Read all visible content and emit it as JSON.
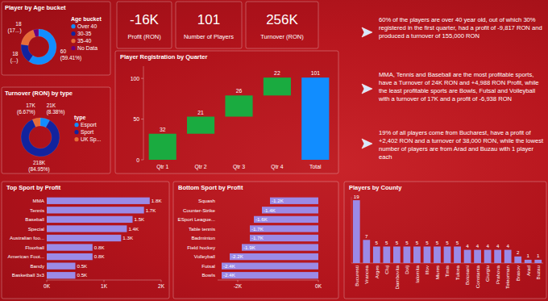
{
  "kpis": [
    {
      "value": "-16K",
      "label": "Profit (RON)"
    },
    {
      "value": "101",
      "label": "Number of Players"
    },
    {
      "value": "256K",
      "label": "Turnover (RON)"
    }
  ],
  "insights": [
    "60% of the players are over 40 year old, out of which 30% registered in the first quarter, had a profit of -9,817 RON and produced a turnover of 155,000 RON",
    "MMA, Tennis and Baseball are the most profitable sports, have a Turnover of 24K RON and +4,988 RON Profit, while the least profitable sports are Bowls, Futsal and Volleyball with a turnover of 17K and a profit of -6,938 RON",
    "19% of all players come from Bucharest, have a profit of +2,402 RON and a turnover of 38,000 RON, while the lowest number of players are from Arad and Buzau with 1 player each"
  ],
  "chart_data": [
    {
      "type": "donut",
      "title": "Player by Age bucket",
      "legend_title": "Age bucket",
      "categories": [
        "Over 40",
        "30-35",
        "35-40",
        "No Data"
      ],
      "values": [
        60,
        18,
        18,
        5
      ],
      "colors": [
        "#118dff",
        "#12239e",
        "#e66c37",
        "#6b007b"
      ],
      "data_labels": true,
      "value_labels": [
        "60 (59.41%)",
        "18 (...)",
        "18 (17...)",
        null
      ],
      "legend": "right"
    },
    {
      "type": "donut",
      "title": "Turnover (RON) by type",
      "legend_title": "type",
      "categories": [
        "Esport",
        "Sport",
        "UK Sp..."
      ],
      "values": [
        21,
        218,
        17
      ],
      "colors": [
        "#118dff",
        "#12239e",
        "#e66c37"
      ],
      "data_labels": true,
      "value_labels": [
        "21K (8.38%)",
        "218K (84.95%)",
        "17K (6.67%)"
      ],
      "legend": "right"
    },
    {
      "type": "waterfall",
      "title": "Player Registration by Quarter",
      "categories": [
        "Qtr 1",
        "Qtr 2",
        "Qtr 3",
        "Qtr 4",
        "Total"
      ],
      "values": [
        32,
        21,
        26,
        22,
        101
      ],
      "colors": [
        "#1aab40",
        "#1aab40",
        "#1aab40",
        "#1aab40",
        "#118dff"
      ],
      "ylim": [
        0,
        115
      ],
      "yticks": [
        0,
        50,
        100
      ],
      "grid": false,
      "data_labels": true
    },
    {
      "type": "bar",
      "orientation": "horizontal",
      "title": "Top Sport by Profit",
      "categories": [
        "MMA",
        "Tennis",
        "Baseball",
        "Special",
        "Australian foo...",
        "Floorball",
        "American Foot...",
        "Bandy",
        "Basketball 3x3"
      ],
      "values": [
        1.8,
        1.7,
        1.5,
        1.4,
        1.3,
        0.8,
        0.8,
        0.5,
        0.5
      ],
      "value_labels": [
        "1.8K",
        "1.7K",
        "1.5K",
        "1.4K",
        "1.3K",
        "0.8K",
        "0.8K",
        "0.5K",
        "0.5K"
      ],
      "color": "#9b8ae6",
      "xlim": [
        0,
        2
      ],
      "xticks": [
        {
          "value": 0,
          "label": "0K"
        },
        {
          "value": 1,
          "label": "1K"
        },
        {
          "value": 2,
          "label": "2K"
        }
      ],
      "data_labels": true
    },
    {
      "type": "bar",
      "orientation": "horizontal",
      "title": "Bottom Sport by Profit",
      "categories": [
        "Squash",
        "Counter-Strike",
        "ESport League...",
        "Table tennis",
        "Badminton",
        "Field hockey",
        "Volleyball",
        "Futsal",
        "Bowls"
      ],
      "values": [
        -1.2,
        -1.4,
        -1.6,
        -1.7,
        -1.7,
        -1.9,
        -2.2,
        -2.4,
        -2.4
      ],
      "value_labels": [
        "-1.2K",
        "-1.4K",
        "-1.6K",
        "-1.7K",
        "-1.7K",
        "-1.9K",
        "-2.2K",
        "-2.4K",
        "-2.4K"
      ],
      "color": "#9b8ae6",
      "xlim": [
        -2.5,
        0
      ],
      "xticks": [
        {
          "value": -2,
          "label": "-2K"
        },
        {
          "value": 0,
          "label": "0K"
        }
      ],
      "data_labels": true
    },
    {
      "type": "bar",
      "title": "Players by County",
      "categories": [
        "Bucuresti",
        "Vrancea",
        "Arges",
        "Cluj",
        "Dambovita",
        "Dolj",
        "Ialomita",
        "Ilfov",
        "Mures",
        "Timis",
        "Tulcea",
        "Botosani",
        "Constanta",
        "Giurgiu",
        "Prahova",
        "Teleorman",
        "Brasov",
        "Arad",
        "Buzau"
      ],
      "values": [
        19,
        7,
        5,
        5,
        5,
        5,
        5,
        5,
        5,
        5,
        5,
        4,
        4,
        4,
        4,
        4,
        2,
        1,
        1
      ],
      "color": "#9b8ae6",
      "ylim": [
        0,
        20
      ],
      "data_labels": true,
      "tick_labels": "x"
    }
  ]
}
